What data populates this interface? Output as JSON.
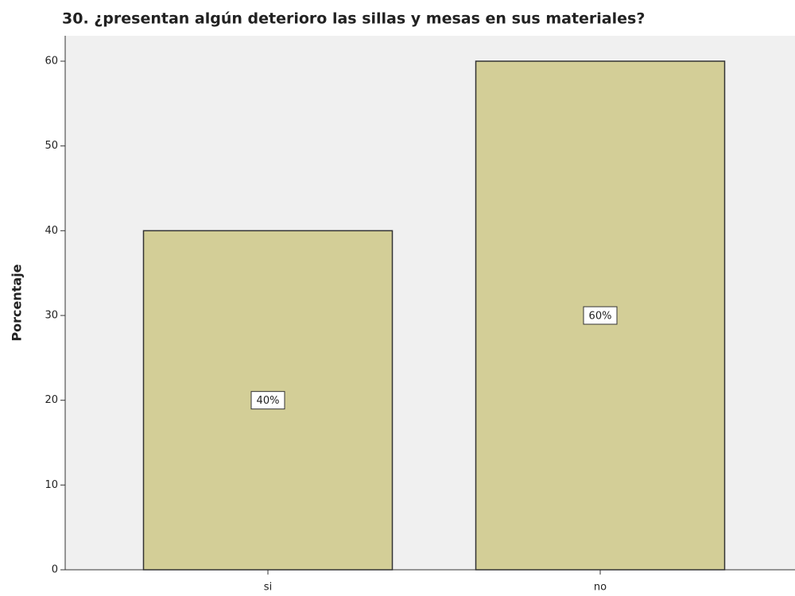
{
  "chart_data": {
    "type": "bar",
    "title": "30. ¿presentan algún deterioro las sillas y mesas en sus materiales?",
    "y_label": "Porcentaje",
    "categories": [
      "si",
      "no"
    ],
    "values": [
      40,
      60
    ],
    "value_labels": [
      "40%",
      "60%"
    ],
    "color": "#d3ce97",
    "ylim": [
      0,
      63
    ],
    "yticks": [
      0,
      10,
      20,
      30,
      40,
      50,
      60
    ],
    "grid": false
  }
}
